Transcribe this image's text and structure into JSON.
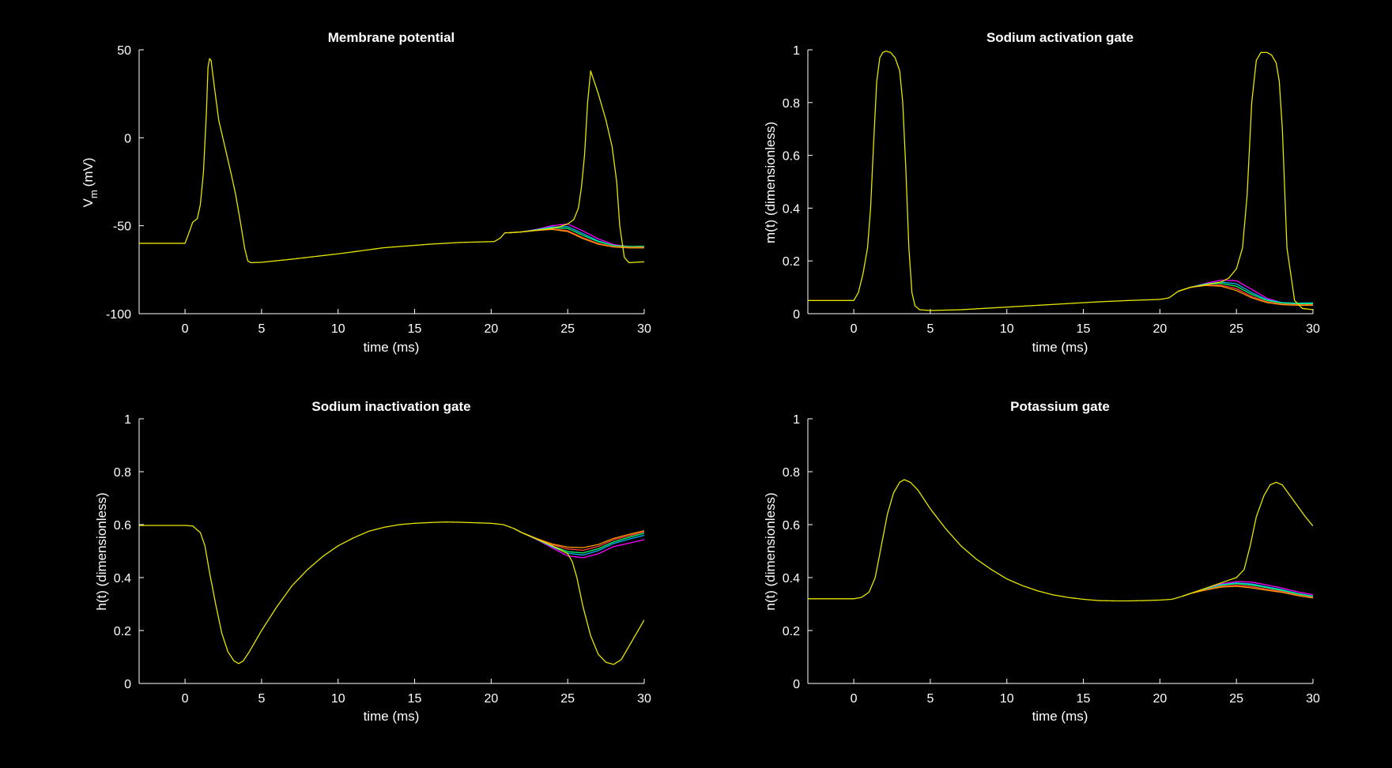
{
  "figure": {
    "background": "#000000",
    "foreground": "#ffffff"
  },
  "chart_data": [
    {
      "type": "line",
      "title": "Membrane potential",
      "xlabel": "time (ms)",
      "ylabel": "V",
      "ylabel_sub": "m",
      "ylabel_suffix": "(mV)",
      "xlim": [
        -3,
        30
      ],
      "ylim": [
        -100,
        50
      ],
      "xticks": [
        0,
        5,
        10,
        15,
        20,
        25,
        30
      ],
      "yticks": [
        -100,
        -50,
        0,
        50
      ],
      "ytick_labels": [
        "-100",
        "-50",
        "0",
        "50"
      ],
      "grid": false,
      "legend": "none",
      "base": {
        "color": "#e6e600",
        "x": [
          -3,
          0,
          0.3,
          0.5,
          0.8,
          1.0,
          1.2,
          1.4,
          1.5,
          1.6,
          1.7,
          1.9,
          2.2,
          2.6,
          3.0,
          3.3,
          3.6,
          3.9,
          4.1,
          4.3,
          5,
          7,
          10,
          13,
          16,
          18,
          20.2,
          20.6,
          20.9,
          21.2,
          22,
          23,
          24,
          24.5,
          25,
          25.4,
          25.7,
          25.9,
          26.1,
          26.3,
          26.5,
          27,
          27.5,
          27.9,
          28.2,
          28.4,
          28.7,
          29,
          30
        ],
        "y": [
          -60,
          -60,
          -53,
          -48,
          -46,
          -38,
          -20,
          15,
          40,
          45,
          44,
          30,
          10,
          -5,
          -20,
          -32,
          -47,
          -63,
          -70,
          -71,
          -70.8,
          -69,
          -66,
          -62.5,
          -60.5,
          -59.5,
          -59,
          -57,
          -54,
          -54,
          -53.5,
          -52.5,
          -51.5,
          -50.5,
          -49,
          -46.5,
          -40,
          -28,
          -10,
          20,
          38,
          25,
          10,
          -5,
          -25,
          -50,
          -68,
          -71,
          -70.5
        ]
      },
      "spread": {
        "x": [
          21.2,
          22,
          23,
          24,
          25,
          26,
          27,
          28,
          29,
          30
        ],
        "y": [
          -54,
          -53.5,
          -52.5,
          -51.5,
          -52,
          -56,
          -59.5,
          -61.5,
          -62,
          -62
        ]
      },
      "offsets": [
        {
          "color": "#ff00ff",
          "values": [
            0,
            0,
            0.5,
            1.5,
            3.0,
            3.0,
            2.0,
            0.8,
            0.2,
            -0.3
          ]
        },
        {
          "color": "#00b4ff",
          "values": [
            0,
            0,
            0.3,
            0.8,
            1.5,
            1.5,
            0.8,
            0.3,
            0,
            0
          ]
        },
        {
          "color": "#00ff66",
          "values": [
            0,
            0,
            0.1,
            0.3,
            0.5,
            0.5,
            0.4,
            0.2,
            0.2,
            0.3
          ]
        },
        {
          "color": "#ff4040",
          "values": [
            0,
            0,
            -0.1,
            -0.3,
            -0.8,
            -0.8,
            -0.6,
            -0.4,
            -0.3,
            -0.3
          ]
        },
        {
          "color": "#ff9900",
          "values": [
            0,
            0,
            -0.2,
            -0.6,
            -1.3,
            -1.3,
            -1.0,
            -0.6,
            -0.6,
            -0.6
          ]
        }
      ]
    },
    {
      "type": "line",
      "title": "Sodium activation gate",
      "xlabel": "time (ms)",
      "ylabel": "m(t) (dimensionless)",
      "xlim": [
        -3,
        30
      ],
      "ylim": [
        0,
        1
      ],
      "xticks": [
        0,
        5,
        10,
        15,
        20,
        25,
        30
      ],
      "yticks": [
        0,
        0.2,
        0.4,
        0.6,
        0.8,
        1
      ],
      "ytick_labels": [
        "0",
        "0.2",
        "0.4",
        "0.6",
        "0.8",
        "1"
      ],
      "grid": false,
      "legend": "none",
      "base": {
        "color": "#e6e600",
        "x": [
          -3,
          0,
          0.3,
          0.6,
          0.9,
          1.1,
          1.3,
          1.5,
          1.7,
          1.9,
          2.1,
          2.4,
          2.7,
          3.0,
          3.2,
          3.4,
          3.6,
          3.8,
          4.0,
          4.3,
          5,
          7,
          10,
          13,
          16,
          18,
          20,
          20.6,
          21.2,
          22,
          23,
          24,
          24.5,
          25,
          25.4,
          25.7,
          26,
          26.3,
          26.6,
          27,
          27.3,
          27.6,
          27.8,
          28.0,
          28.3,
          28.8,
          29.3,
          30
        ],
        "y": [
          0.05,
          0.05,
          0.08,
          0.15,
          0.25,
          0.4,
          0.65,
          0.88,
          0.97,
          0.99,
          0.995,
          0.99,
          0.97,
          0.92,
          0.8,
          0.55,
          0.25,
          0.08,
          0.03,
          0.015,
          0.012,
          0.015,
          0.025,
          0.035,
          0.045,
          0.05,
          0.054,
          0.06,
          0.085,
          0.1,
          0.11,
          0.12,
          0.135,
          0.17,
          0.25,
          0.45,
          0.8,
          0.96,
          0.99,
          0.99,
          0.98,
          0.95,
          0.88,
          0.7,
          0.25,
          0.05,
          0.02,
          0.015
        ]
      },
      "spread": {
        "x": [
          21.2,
          22,
          23,
          24,
          25,
          26,
          27,
          28,
          29,
          30
        ],
        "y": [
          0.085,
          0.1,
          0.11,
          0.112,
          0.1,
          0.07,
          0.048,
          0.038,
          0.036,
          0.036
        ]
      },
      "offsets": [
        {
          "color": "#ff00ff",
          "values": [
            0,
            0,
            0.005,
            0.015,
            0.025,
            0.022,
            0.01,
            0.003,
            0,
            0
          ]
        },
        {
          "color": "#00b4ff",
          "values": [
            0,
            0,
            0.003,
            0.008,
            0.013,
            0.01,
            0.005,
            0.004,
            0.004,
            0.005
          ]
        },
        {
          "color": "#00ff66",
          "values": [
            0,
            0,
            0.001,
            0.003,
            0.004,
            0.003,
            0.002,
            0.002,
            0.002,
            0.002
          ]
        },
        {
          "color": "#ff4040",
          "values": [
            0,
            0,
            -0.002,
            -0.004,
            -0.005,
            -0.005,
            -0.003,
            -0.002,
            -0.002,
            -0.002
          ]
        },
        {
          "color": "#ff9900",
          "values": [
            0,
            0,
            -0.003,
            -0.008,
            -0.012,
            -0.01,
            -0.006,
            -0.004,
            -0.004,
            -0.004
          ]
        }
      ]
    },
    {
      "type": "line",
      "title": "Sodium inactivation gate",
      "xlabel": "time (ms)",
      "ylabel": "h(t) (dimensionless)",
      "xlim": [
        -3,
        30
      ],
      "ylim": [
        0,
        1
      ],
      "xticks": [
        0,
        5,
        10,
        15,
        20,
        25,
        30
      ],
      "yticks": [
        0,
        0.2,
        0.4,
        0.6,
        0.8,
        1
      ],
      "ytick_labels": [
        "0",
        "0.2",
        "0.4",
        "0.6",
        "0.8",
        "1"
      ],
      "grid": false,
      "legend": "none",
      "base": {
        "color": "#e6e600",
        "x": [
          -3,
          0,
          0.5,
          1.0,
          1.3,
          1.6,
          2.0,
          2.4,
          2.8,
          3.2,
          3.5,
          3.8,
          4.2,
          5,
          6,
          7,
          8,
          9,
          10,
          11,
          12,
          13,
          14,
          15,
          16,
          17,
          18,
          19,
          20,
          20.8,
          21.5,
          22,
          23,
          24,
          24.5,
          25,
          25.3,
          25.6,
          26,
          26.5,
          27,
          27.5,
          28,
          28.5,
          29,
          29.5,
          30
        ],
        "y": [
          0.597,
          0.597,
          0.595,
          0.57,
          0.52,
          0.42,
          0.3,
          0.19,
          0.12,
          0.085,
          0.075,
          0.085,
          0.12,
          0.2,
          0.29,
          0.37,
          0.43,
          0.48,
          0.52,
          0.55,
          0.575,
          0.59,
          0.6,
          0.605,
          0.608,
          0.61,
          0.609,
          0.607,
          0.605,
          0.6,
          0.585,
          0.57,
          0.545,
          0.52,
          0.505,
          0.49,
          0.46,
          0.4,
          0.29,
          0.18,
          0.11,
          0.08,
          0.072,
          0.09,
          0.14,
          0.19,
          0.24
        ]
      },
      "spread": {
        "x": [
          21.5,
          22,
          23,
          24,
          25,
          26,
          27,
          28,
          29,
          30
        ],
        "y": [
          0.585,
          0.57,
          0.545,
          0.52,
          0.5,
          0.495,
          0.51,
          0.535,
          0.55,
          0.565
        ]
      },
      "offsets": [
        {
          "color": "#ff00ff",
          "values": [
            0,
            0,
            -0.002,
            -0.008,
            -0.018,
            -0.02,
            -0.02,
            -0.018,
            -0.02,
            -0.022
          ]
        },
        {
          "color": "#00b4ff",
          "values": [
            0,
            0,
            -0.001,
            -0.004,
            -0.008,
            -0.01,
            -0.008,
            -0.006,
            -0.005,
            -0.005
          ]
        },
        {
          "color": "#00ff66",
          "values": [
            0,
            0,
            0,
            -0.001,
            -0.002,
            -0.002,
            -0.001,
            0,
            0.002,
            0.003
          ]
        },
        {
          "color": "#ff4040",
          "values": [
            0,
            0,
            0.001,
            0.004,
            0.008,
            0.008,
            0.008,
            0.008,
            0.008,
            0.008
          ]
        },
        {
          "color": "#ff9900",
          "values": [
            0,
            0,
            0.002,
            0.007,
            0.015,
            0.018,
            0.015,
            0.013,
            0.013,
            0.012
          ]
        }
      ]
    },
    {
      "type": "line",
      "title": "Potassium gate",
      "xlabel": "time (ms)",
      "ylabel": "n(t) (dimensionless)",
      "xlim": [
        -3,
        30
      ],
      "ylim": [
        0,
        1
      ],
      "xticks": [
        0,
        5,
        10,
        15,
        20,
        25,
        30
      ],
      "yticks": [
        0,
        0.2,
        0.4,
        0.6,
        0.8,
        1
      ],
      "ytick_labels": [
        "0",
        "0.2",
        "0.4",
        "0.6",
        "0.8",
        "1"
      ],
      "grid": false,
      "legend": "none",
      "base": {
        "color": "#e6e600",
        "x": [
          -3,
          0,
          0.5,
          1.0,
          1.4,
          1.8,
          2.2,
          2.6,
          3.0,
          3.3,
          3.7,
          4.2,
          5,
          6,
          7,
          8,
          9,
          10,
          11,
          12,
          13,
          14,
          15,
          16,
          17,
          18,
          19,
          20,
          20.8,
          21.5,
          22,
          23,
          24,
          25,
          25.5,
          25.9,
          26.3,
          26.8,
          27.2,
          27.6,
          28,
          28.5,
          29,
          29.5,
          30
        ],
        "y": [
          0.32,
          0.32,
          0.325,
          0.345,
          0.4,
          0.52,
          0.64,
          0.72,
          0.76,
          0.77,
          0.76,
          0.73,
          0.66,
          0.585,
          0.52,
          0.47,
          0.43,
          0.395,
          0.37,
          0.35,
          0.335,
          0.325,
          0.318,
          0.313,
          0.312,
          0.312,
          0.313,
          0.315,
          0.318,
          0.33,
          0.34,
          0.36,
          0.38,
          0.4,
          0.43,
          0.52,
          0.63,
          0.71,
          0.75,
          0.76,
          0.75,
          0.71,
          0.67,
          0.63,
          0.595
        ]
      },
      "spread": {
        "x": [
          21.5,
          22,
          23,
          24,
          25,
          26,
          27,
          28,
          29,
          30
        ],
        "y": [
          0.33,
          0.34,
          0.355,
          0.37,
          0.375,
          0.37,
          0.36,
          0.35,
          0.337,
          0.327
        ]
      },
      "offsets": [
        {
          "color": "#ff00ff",
          "values": [
            0,
            0,
            0.002,
            0.006,
            0.01,
            0.013,
            0.012,
            0.01,
            0.009,
            0.008
          ]
        },
        {
          "color": "#00b4ff",
          "values": [
            0,
            0,
            0.001,
            0.003,
            0.005,
            0.006,
            0.005,
            0.004,
            0.003,
            0.003
          ]
        },
        {
          "color": "#00ff66",
          "values": [
            0,
            0,
            0,
            0.001,
            0.002,
            0.002,
            0.002,
            0.001,
            0.001,
            0.001
          ]
        },
        {
          "color": "#ff4040",
          "values": [
            0,
            0,
            -0.001,
            -0.003,
            -0.004,
            -0.004,
            -0.004,
            -0.003,
            -0.003,
            -0.002
          ]
        },
        {
          "color": "#ff9900",
          "values": [
            0,
            0,
            -0.002,
            -0.006,
            -0.008,
            -0.009,
            -0.008,
            -0.006,
            -0.005,
            -0.004
          ]
        }
      ]
    }
  ]
}
